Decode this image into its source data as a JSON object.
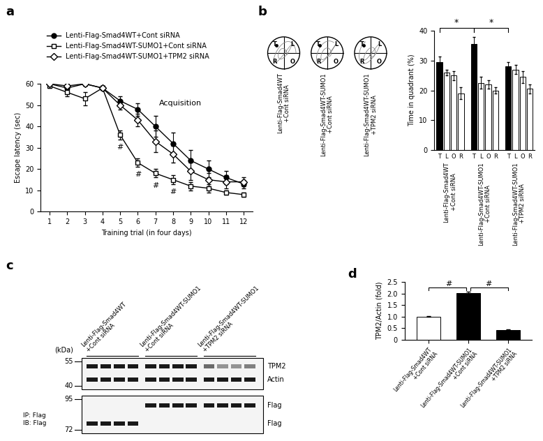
{
  "panel_labels": [
    "a",
    "b",
    "c",
    "d"
  ],
  "chart_data": [
    {
      "type": "line",
      "annotation": "Acquisition",
      "x_label": "Training trial (in four days)",
      "y_label": "Escape latency (sec)",
      "x": [
        1,
        2,
        3,
        4,
        5,
        6,
        7,
        8,
        9,
        10,
        11,
        12
      ],
      "xlim": [
        0.5,
        12.5
      ],
      "xticks": [
        1,
        2,
        3,
        4,
        5,
        6,
        7,
        8,
        9,
        10,
        11,
        12
      ],
      "ylim": [
        0,
        60
      ],
      "yticks": [
        0,
        10,
        20,
        30,
        40,
        50,
        60
      ],
      "legend": "upper left",
      "series": [
        {
          "name": "Lenti-Flag-Smad4WT+Cont siRNA",
          "color": "#000000",
          "marker": "o",
          "line_style": "solid",
          "values": [
            60,
            58,
            60,
            58,
            52,
            48,
            40,
            32,
            24,
            20,
            16,
            13
          ],
          "errors": [
            1,
            1,
            1,
            1,
            2,
            3,
            5,
            5,
            5,
            4,
            3,
            2
          ]
        },
        {
          "name": "Lenti-Flag-Smad4WT-SUMO1+Cont siRNA",
          "color": "#000000",
          "marker": "s",
          "line_style": "solid",
          "values": [
            59,
            56,
            53,
            58,
            36,
            23,
            18,
            15,
            12,
            11,
            9,
            8
          ],
          "errors": [
            1,
            2,
            3,
            1,
            2,
            2,
            2,
            2,
            2,
            2,
            1,
            1
          ]
        },
        {
          "name": "Lenti-Flag-Smad4WT-SUMO1+TPM2 siRNA",
          "color": "#000000",
          "marker": "D",
          "line_style": "solid",
          "values": [
            60,
            59,
            60,
            58,
            50,
            43,
            33,
            27,
            19,
            15,
            14,
            14
          ],
          "errors": [
            1,
            1,
            1,
            1,
            2,
            3,
            5,
            4,
            4,
            3,
            3,
            2
          ]
        }
      ],
      "significance": {
        "series": "Lenti-Flag-Smad4WT-SUMO1+Cont siRNA",
        "x": [
          5,
          6,
          7,
          8
        ],
        "text": "#"
      }
    },
    {
      "type": "bar",
      "y_label": "Time in quadrant (%)",
      "groups": [
        "Lenti-Flag-Smad4WT\n+Cont siRNA",
        "Lenti-Flag-Smad4WT-SUMO1\n+Cont siRNA",
        "Lenti-Flag-Smad4WT-SUMO1\n+TPM2 siRNA"
      ],
      "categories": [
        "T",
        "L",
        "O",
        "R",
        "T",
        "L",
        "O",
        "R",
        "T",
        "L",
        "O",
        "R"
      ],
      "values": [
        29.5,
        26,
        25,
        19,
        35.5,
        22.5,
        22,
        20,
        28,
        27,
        24.5,
        20.5
      ],
      "errors": [
        2,
        1,
        1.5,
        2,
        2.5,
        2,
        1.5,
        1,
        1.5,
        1.5,
        2,
        1.5
      ],
      "colors": [
        "#000000",
        "#ffffff",
        "#ffffff",
        "#ffffff",
        "#000000",
        "#ffffff",
        "#ffffff",
        "#ffffff",
        "#000000",
        "#ffffff",
        "#ffffff",
        "#ffffff"
      ],
      "ylim": [
        0,
        40
      ],
      "yticks": [
        0,
        10,
        20,
        30,
        40
      ],
      "comparisons": [
        {
          "between": [
            0,
            4
          ],
          "text": "*"
        },
        {
          "between": [
            4,
            8
          ],
          "text": "*"
        }
      ]
    },
    {
      "type": "bar",
      "y_label": "TPM2/Actin (fold)",
      "categories": [
        "Lenti-Flag-Smad4WT\n+Cont siRNA",
        "Lenti-Flag-Smad4WT-SUMO1\n+Cont siRNA",
        "Lenti-Flag-Smad4WT-SUMO1\n+TPM2 siRNA"
      ],
      "values": [
        1.0,
        2.02,
        0.43
      ],
      "errors": [
        0.01,
        0.06,
        0.01
      ],
      "colors": [
        "#ffffff",
        "#000000",
        "#000000"
      ],
      "ylim": [
        0,
        2.5
      ],
      "yticks": [
        0,
        0.5,
        1.0,
        1.5,
        2.0,
        2.5
      ],
      "comparisons": [
        {
          "between": [
            0,
            1
          ],
          "text": "#"
        },
        {
          "between": [
            1,
            2
          ],
          "text": "#"
        }
      ]
    }
  ],
  "swim_paths": {
    "quadrants": [
      "T",
      "L",
      "R",
      "O"
    ],
    "captions": [
      "Lenti-Flag-Smad4WT\n+Cont siRNA",
      "Lenti-Flag-Smad4WT-SUMO1\n+Cont siRNA",
      "Lenti-Flag-Smad4WT-SUMO1\n+TPM2 siRNA"
    ]
  },
  "blot": {
    "unit": "(kDa)",
    "groups": [
      "Lenti-Flag-Smad4WT\n+Cont siRNA",
      "Lenti-Flag-Smad4WT-SUMO1\n+Cont siRNA",
      "Lenti-Flag-Smad4WT-SUMO1\n+TPM2 siRNA"
    ],
    "upper": {
      "markers": [
        55,
        40
      ],
      "bands": [
        {
          "label": "TPM2",
          "intensity": [
            1,
            1,
            1,
            1,
            1,
            1,
            1,
            1,
            0.6,
            0.4,
            0.4,
            0.5
          ]
        },
        {
          "label": "Actin",
          "intensity": [
            1,
            1,
            1,
            1,
            1,
            1,
            1,
            1,
            1,
            1,
            1,
            1
          ]
        }
      ]
    },
    "lower": {
      "side_labels": [
        "IP: Flag",
        "IB: Flag"
      ],
      "markers": [
        95,
        72
      ],
      "bands": [
        {
          "label": "Flag",
          "intensity": [
            0,
            0,
            0,
            0,
            1,
            1,
            1,
            1,
            1,
            1,
            1,
            1
          ]
        },
        {
          "label": "Flag",
          "intensity": [
            1,
            1,
            1,
            1,
            0,
            0,
            0,
            0,
            0,
            0,
            0,
            0
          ]
        }
      ]
    }
  }
}
